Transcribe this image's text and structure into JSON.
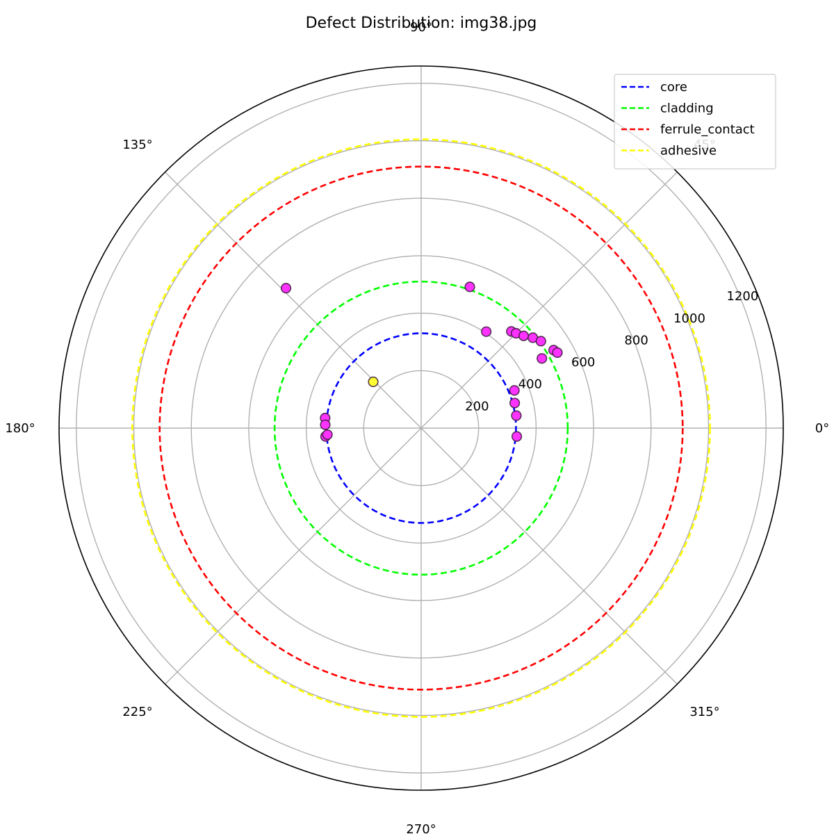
{
  "chart_data": {
    "type": "scatter",
    "projection": "polar",
    "title": "Defect Distribution: img38.jpg",
    "angle_ticks": [
      {
        "deg": 0,
        "label": "0°"
      },
      {
        "deg": 45,
        "label": "45°"
      },
      {
        "deg": 90,
        "label": "90°"
      },
      {
        "deg": 135,
        "label": "135°"
      },
      {
        "deg": 180,
        "label": "180°"
      },
      {
        "deg": 225,
        "label": "225°"
      },
      {
        "deg": 270,
        "label": "270°"
      },
      {
        "deg": 315,
        "label": "315°"
      }
    ],
    "radial_ticks": [
      {
        "value": 200,
        "label": "200"
      },
      {
        "value": 400,
        "label": "400"
      },
      {
        "value": 600,
        "label": "600"
      },
      {
        "value": 800,
        "label": "800"
      },
      {
        "value": 1000,
        "label": "1000"
      },
      {
        "value": 1200,
        "label": "1200"
      }
    ],
    "rlim": [
      0,
      1260
    ],
    "radial_label_angle_deg": 22.5,
    "grid": true,
    "legend_position": "top-right",
    "boundaries": [
      {
        "name": "core",
        "radius": 330,
        "color": "#0000ff"
      },
      {
        "name": "cladding",
        "radius": 510,
        "color": "#00ff00"
      },
      {
        "name": "ferrule_contact",
        "radius": 910,
        "color": "#ff0000"
      },
      {
        "name": "adhesive",
        "radius": 1005,
        "color": "#ffff00"
      }
    ],
    "points": [
      {
        "angle_deg": 134,
        "r": 677,
        "color": "#ff33ff"
      },
      {
        "angle_deg": 71,
        "r": 520,
        "color": "#ff33ff"
      },
      {
        "angle_deg": 56,
        "r": 405,
        "color": "#ff33ff"
      },
      {
        "angle_deg": 47,
        "r": 460,
        "color": "#ff33ff"
      },
      {
        "angle_deg": 45,
        "r": 467,
        "color": "#ff33ff"
      },
      {
        "angle_deg": 42,
        "r": 480,
        "color": "#ff33ff"
      },
      {
        "angle_deg": 39,
        "r": 500,
        "color": "#ff33ff"
      },
      {
        "angle_deg": 36,
        "r": 515,
        "color": "#ff33ff"
      },
      {
        "angle_deg": 30,
        "r": 485,
        "color": "#ff33ff"
      },
      {
        "angle_deg": 30.5,
        "r": 535,
        "color": "#ff33ff"
      },
      {
        "angle_deg": 29,
        "r": 542,
        "color": "#ff33ff"
      },
      {
        "angle_deg": 22,
        "r": 350,
        "color": "#ff33ff"
      },
      {
        "angle_deg": 15,
        "r": 337,
        "color": "#ff33ff"
      },
      {
        "angle_deg": 7.5,
        "r": 334,
        "color": "#ff33ff"
      },
      {
        "angle_deg": -5,
        "r": 334,
        "color": "#ff33ff"
      },
      {
        "angle_deg": 136,
        "r": 232,
        "color": "#ffff33"
      },
      {
        "angle_deg": 174,
        "r": 336,
        "color": "#ff33ff"
      },
      {
        "angle_deg": 178,
        "r": 334,
        "color": "#ff33ff"
      },
      {
        "angle_deg": 185,
        "r": 334,
        "color": "#ff33ff"
      },
      {
        "angle_deg": 184,
        "r": 327,
        "color": "#ff33ff"
      }
    ]
  }
}
